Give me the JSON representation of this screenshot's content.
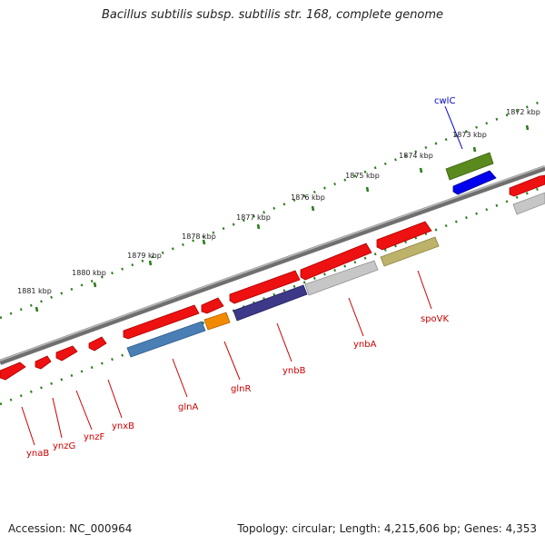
{
  "title": "Bacillus subtilis subsp. subtilis str. 168, complete genome",
  "footer": {
    "accession": "Accession: NC_000964",
    "summary": "Topology: circular; Length: 4,215,606 bp; Genes: 4,353"
  },
  "colors": {
    "backbone": "#777777",
    "tick": "#2e7d1e",
    "label_red": "#cc0000",
    "label_blue": "#0000cc"
  },
  "kbp_labels": [
    "1881 kbp",
    "1880 kbp",
    "1879 kbp",
    "1878 kbp",
    "1877 kbp",
    "1876 kbp",
    "1875 kbp",
    "1874 kbp",
    "1873 kbp",
    "1872 kbp"
  ],
  "genes": [
    {
      "id": "ynaB",
      "label": "ynaB",
      "color": "#cc0000"
    },
    {
      "id": "ynzG",
      "label": "ynzG",
      "color": "#cc0000"
    },
    {
      "id": "ynzF",
      "label": "ynzF",
      "color": "#cc0000"
    },
    {
      "id": "ynxB",
      "label": "ynxB",
      "color": "#cc0000"
    },
    {
      "id": "glnA",
      "label": "glnA",
      "color": "#cc0000"
    },
    {
      "id": "glnR",
      "label": "glnR",
      "color": "#cc0000"
    },
    {
      "id": "ynbB",
      "label": "ynbB",
      "color": "#cc0000"
    },
    {
      "id": "ynbA",
      "label": "ynbA",
      "color": "#cc0000"
    },
    {
      "id": "spoVK",
      "label": "spoVK",
      "color": "#cc0000"
    },
    {
      "id": "cwlC",
      "label": "cwlC",
      "color": "#0000cc"
    }
  ]
}
